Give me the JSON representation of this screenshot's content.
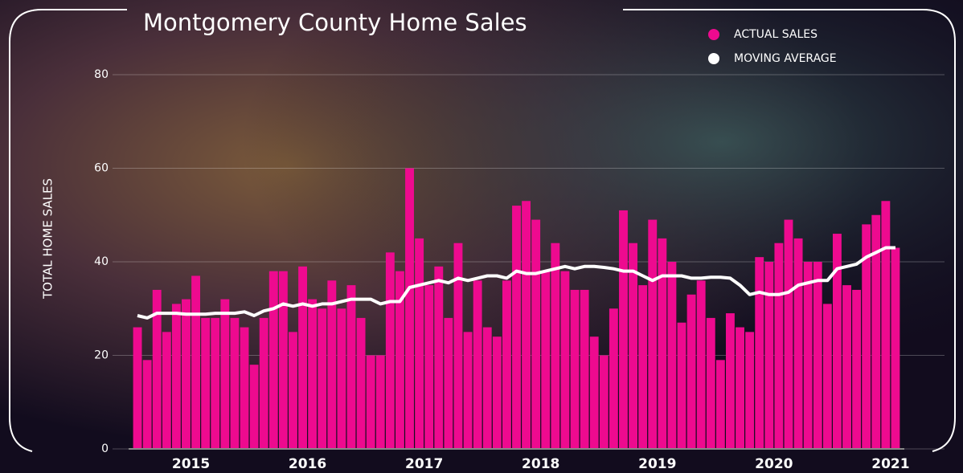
{
  "chart_data": {
    "type": "bar",
    "title": "Montgomery County Home Sales",
    "y_label": "TOTAL HOME SALES",
    "categories": [
      null,
      null,
      null,
      null,
      null,
      null,
      "2015",
      null,
      null,
      null,
      null,
      null,
      null,
      null,
      null,
      null,
      null,
      null,
      "2016",
      null,
      null,
      null,
      null,
      null,
      null,
      null,
      null,
      null,
      null,
      null,
      "2017",
      null,
      null,
      null,
      null,
      null,
      null,
      null,
      null,
      null,
      null,
      null,
      "2018",
      null,
      null,
      null,
      null,
      null,
      null,
      null,
      null,
      null,
      null,
      null,
      "2019",
      null,
      null,
      null,
      null,
      null,
      null,
      null,
      null,
      null,
      null,
      null,
      "2020",
      null,
      null,
      null,
      null,
      null,
      null,
      null,
      null,
      null,
      null,
      null,
      "2021"
    ],
    "series": [
      {
        "name": "ACTUAL SALES",
        "type": "bar",
        "color": "#ee0a8f",
        "values": [
          26,
          19,
          34,
          25,
          31,
          32,
          37,
          28,
          28,
          32,
          28,
          26,
          18,
          28,
          38,
          38,
          25,
          39,
          32,
          30,
          36,
          30,
          35,
          28,
          20,
          20,
          42,
          38,
          60,
          45,
          35,
          39,
          28,
          44,
          25,
          36,
          26,
          24,
          36,
          52,
          53,
          49,
          38,
          44,
          38,
          34,
          34,
          24,
          20,
          30,
          51,
          44,
          35,
          49,
          45,
          40,
          27,
          33,
          36,
          28,
          19,
          29,
          26,
          25,
          41,
          40,
          44,
          49,
          45,
          40,
          40,
          31,
          46,
          35,
          34,
          48,
          50,
          53,
          43
        ]
      },
      {
        "name": "MOVING AVERAGE",
        "type": "line",
        "color": "#ffffff",
        "values": [
          28.5,
          28,
          29,
          29,
          29,
          28.8,
          28.8,
          28.8,
          29,
          29,
          29,
          29.3,
          28.5,
          29.5,
          30,
          31,
          30.5,
          31,
          30.5,
          31,
          31,
          31.5,
          32,
          32,
          32,
          31,
          31.5,
          31.5,
          34.5,
          35,
          35.5,
          36,
          35.5,
          36.5,
          36,
          36.5,
          37,
          37,
          36.5,
          38,
          37.5,
          37.5,
          38,
          38.5,
          39,
          38.5,
          39,
          39,
          38.8,
          38.5,
          38,
          38,
          37,
          36,
          37,
          37,
          37,
          36.5,
          36.5,
          36.7,
          36.7,
          36.5,
          35,
          33,
          33.5,
          33,
          33,
          33.5,
          35,
          35.5,
          36,
          36,
          38.5,
          39,
          39.5,
          41,
          42,
          43,
          43
        ]
      }
    ],
    "ylim": [
      0,
      80
    ],
    "yticks": [
      0,
      20,
      40,
      60,
      80
    ],
    "grid": true,
    "legend": "top-right"
  }
}
